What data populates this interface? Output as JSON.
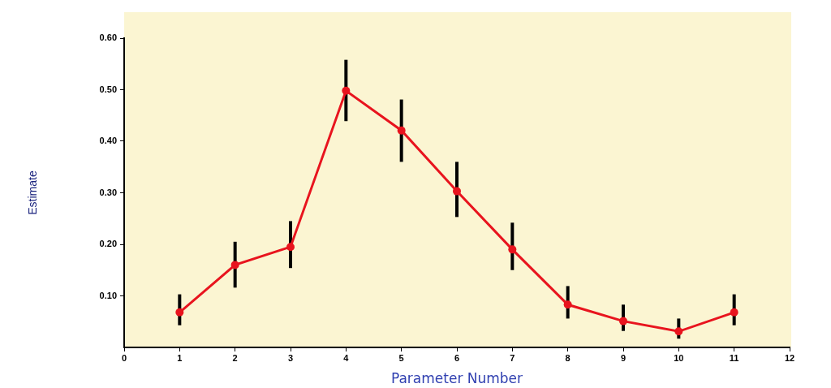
{
  "chart_data": {
    "type": "line",
    "x_label": "Parameter Number",
    "y_label": "Estimate",
    "x": [
      1,
      2,
      3,
      4,
      5,
      6,
      7,
      8,
      9,
      10,
      11
    ],
    "values": [
      0.068,
      0.16,
      0.195,
      0.498,
      0.421,
      0.303,
      0.19,
      0.083,
      0.051,
      0.031,
      0.068
    ],
    "error_low": [
      0.043,
      0.116,
      0.154,
      0.439,
      0.36,
      0.253,
      0.15,
      0.056,
      0.032,
      0.017,
      0.043
    ],
    "error_high": [
      0.103,
      0.205,
      0.245,
      0.558,
      0.481,
      0.36,
      0.242,
      0.119,
      0.083,
      0.056,
      0.103
    ],
    "color": "#e8141e",
    "marker": "circle",
    "line_style": "solid",
    "xlim": [
      0,
      12
    ],
    "xticks": [
      0,
      1,
      2,
      3,
      4,
      5,
      6,
      7,
      8,
      9,
      10,
      11,
      12
    ],
    "ylim": [
      0,
      0.6
    ],
    "yticks": [
      {
        "value": 0.1,
        "label": "0.10"
      },
      {
        "value": 0.2,
        "label": "0.20"
      },
      {
        "value": 0.3,
        "label": "0.30"
      },
      {
        "value": 0.4,
        "label": "0.40"
      },
      {
        "value": 0.5,
        "label": "0.50"
      },
      {
        "value": 0.6,
        "label": "0.60"
      }
    ],
    "grid": false
  }
}
